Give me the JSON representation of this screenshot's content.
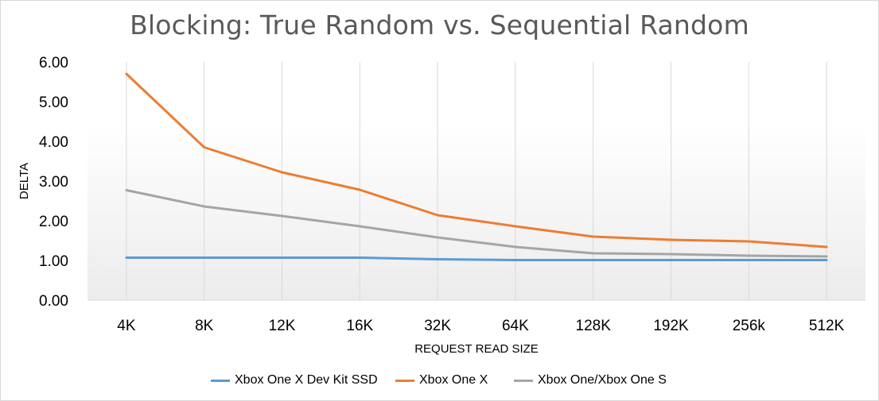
{
  "chart_data": {
    "type": "line",
    "title": "Blocking: True Random vs. Sequential Random",
    "xlabel": "REQUEST READ SIZE",
    "ylabel": "DELTA",
    "categories": [
      "4K",
      "8K",
      "12K",
      "16K",
      "32K",
      "64K",
      "128K",
      "192K",
      "256k",
      "512K"
    ],
    "ylim": [
      0,
      6
    ],
    "yticks": [
      "0.00",
      "1.00",
      "2.00",
      "3.00",
      "4.00",
      "5.00",
      "6.00"
    ],
    "grid": "vertical lines at categories",
    "legend_position": "bottom",
    "series": [
      {
        "name": "Xbox One X Dev Kit SSD",
        "color": "#5b9bd5",
        "values": [
          1.07,
          1.07,
          1.07,
          1.07,
          1.03,
          1.01,
          1.01,
          1.01,
          1.01,
          1.01
        ]
      },
      {
        "name": "Xbox One X",
        "color": "#ed7d31",
        "values": [
          5.7,
          3.85,
          3.22,
          2.78,
          2.14,
          1.86,
          1.6,
          1.52,
          1.48,
          1.34
        ]
      },
      {
        "name": "Xbox One/Xbox One S",
        "color": "#a5a5a5",
        "values": [
          2.77,
          2.36,
          2.12,
          1.86,
          1.58,
          1.34,
          1.18,
          1.16,
          1.12,
          1.1
        ]
      }
    ]
  }
}
